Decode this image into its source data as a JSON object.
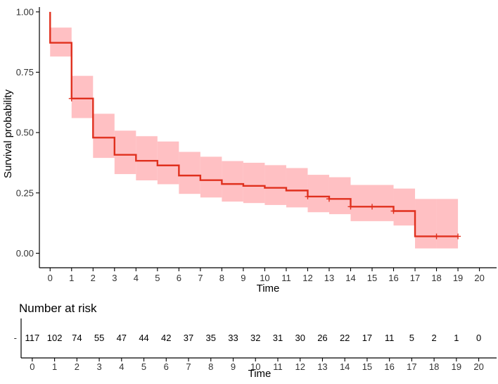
{
  "chart_data": [
    {
      "type": "line",
      "subtype": "kaplan-meier-step",
      "title": "",
      "xlabel": "Time",
      "ylabel": "Survival probability",
      "xlim": [
        -0.5,
        20.8
      ],
      "ylim": [
        -0.06,
        1.02
      ],
      "x_ticks": [
        "0",
        "1",
        "2",
        "3",
        "4",
        "5",
        "6",
        "7",
        "8",
        "9",
        "10",
        "11",
        "12",
        "13",
        "14",
        "15",
        "16",
        "17",
        "18",
        "19",
        "20"
      ],
      "y_ticks": [
        "0.00",
        "0.25",
        "0.50",
        "0.75",
        "1.00"
      ],
      "y_tick_values": [
        0,
        0.25,
        0.5,
        0.75,
        1.0
      ],
      "grid": false,
      "legend": "none",
      "colors": {
        "line": "#e0301e",
        "ci_band": "#ffc0c3",
        "axis": "#000000"
      },
      "series": [
        {
          "name": "Survival",
          "time": [
            0,
            0,
            1,
            2,
            3,
            4,
            5,
            6,
            7,
            8,
            9,
            10,
            11,
            12,
            13,
            14,
            15,
            16,
            17,
            18,
            19
          ],
          "surv": [
            1.0,
            0.872,
            0.641,
            0.479,
            0.408,
            0.383,
            0.364,
            0.322,
            0.303,
            0.287,
            0.279,
            0.271,
            0.26,
            0.235,
            0.225,
            0.193,
            0.193,
            0.175,
            0.07,
            0.07,
            0.07
          ],
          "lower": [
            1.0,
            0.815,
            0.56,
            0.395,
            0.328,
            0.302,
            0.286,
            0.246,
            0.231,
            0.214,
            0.208,
            0.2,
            0.19,
            0.17,
            0.162,
            0.133,
            0.133,
            0.115,
            0.02,
            0.02,
            0.02
          ],
          "upper": [
            1.0,
            0.935,
            0.735,
            0.578,
            0.508,
            0.485,
            0.463,
            0.42,
            0.4,
            0.382,
            0.375,
            0.365,
            0.353,
            0.325,
            0.315,
            0.283,
            0.283,
            0.268,
            0.225,
            0.225,
            0.225
          ]
        }
      ],
      "censor_marks": [
        {
          "time": 1,
          "surv": 0.641
        },
        {
          "time": 12,
          "surv": 0.235
        },
        {
          "time": 13,
          "surv": 0.225
        },
        {
          "time": 14,
          "surv": 0.193
        },
        {
          "time": 15,
          "surv": 0.193
        },
        {
          "time": 16,
          "surv": 0.175
        },
        {
          "time": 18,
          "surv": 0.07
        },
        {
          "time": 19,
          "surv": 0.07
        }
      ]
    },
    {
      "type": "table",
      "title": "Number at risk",
      "xlabel": "Time",
      "xlim": [
        -0.5,
        20.8
      ],
      "x_ticks": [
        "0",
        "1",
        "2",
        "3",
        "4",
        "5",
        "6",
        "7",
        "8",
        "9",
        "10",
        "11",
        "12",
        "13",
        "14",
        "15",
        "16",
        "17",
        "18",
        "19",
        "20"
      ],
      "strata_label": "-",
      "values": [
        117,
        102,
        74,
        55,
        47,
        44,
        42,
        37,
        35,
        33,
        32,
        31,
        30,
        26,
        22,
        17,
        11,
        5,
        2,
        1,
        0
      ]
    }
  ]
}
